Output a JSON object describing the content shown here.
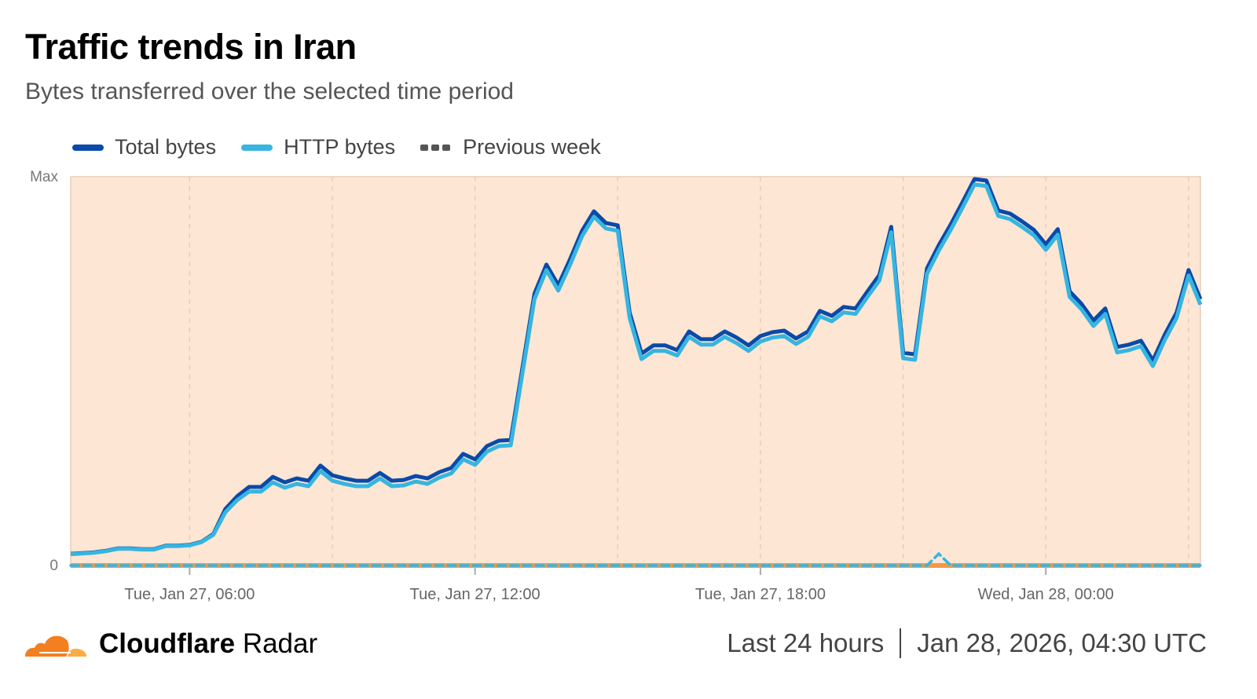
{
  "header": {
    "title": "Traffic trends in Iran",
    "subtitle": "Bytes transferred over the selected time period"
  },
  "footer": {
    "brand_bold": "Cloudflare",
    "brand_light": "Radar",
    "range": "Last 24 hours",
    "timestamp": "Jan 28, 2026, 04:30 UTC"
  },
  "chart_data": {
    "type": "line",
    "title": "Traffic trends in Iran",
    "subtitle": "Bytes transferred over the selected time period",
    "xlabel": "",
    "ylabel": "",
    "interval_minutes": 15,
    "y_tick_labels": [
      "0",
      "Max"
    ],
    "ylim": [
      0,
      1
    ],
    "x_ticks": [
      {
        "index": 10,
        "label": "Tue, Jan 27, 06:00"
      },
      {
        "index": 34,
        "label": "Tue, Jan 27, 12:00"
      },
      {
        "index": 58,
        "label": "Tue, Jan 27, 18:00"
      },
      {
        "index": 82,
        "label": "Wed, Jan 28, 00:00"
      }
    ],
    "gridline_indices": [
      10,
      22,
      34,
      46,
      58,
      70,
      82,
      94
    ],
    "legend_position": "top-left",
    "series": [
      {
        "name": "Total bytes",
        "color": "#0a4aa8",
        "style": "solid",
        "values": [
          0.03,
          0.032,
          0.034,
          0.038,
          0.044,
          0.044,
          0.042,
          0.042,
          0.051,
          0.051,
          0.053,
          0.061,
          0.081,
          0.145,
          0.178,
          0.202,
          0.202,
          0.228,
          0.214,
          0.224,
          0.218,
          0.257,
          0.232,
          0.224,
          0.218,
          0.218,
          0.238,
          0.218,
          0.22,
          0.23,
          0.224,
          0.24,
          0.251,
          0.287,
          0.273,
          0.307,
          0.321,
          0.323,
          0.511,
          0.699,
          0.774,
          0.721,
          0.788,
          0.861,
          0.911,
          0.881,
          0.875,
          0.651,
          0.545,
          0.566,
          0.566,
          0.554,
          0.602,
          0.582,
          0.582,
          0.602,
          0.586,
          0.566,
          0.59,
          0.6,
          0.604,
          0.584,
          0.602,
          0.655,
          0.642,
          0.665,
          0.661,
          0.705,
          0.747,
          0.871,
          0.547,
          0.543,
          0.764,
          0.824,
          0.877,
          0.935,
          0.994,
          0.99,
          0.913,
          0.905,
          0.885,
          0.863,
          0.826,
          0.865,
          0.705,
          0.673,
          0.63,
          0.661,
          0.562,
          0.568,
          0.578,
          0.527,
          0.594,
          0.651,
          0.76,
          0.685
        ]
      },
      {
        "name": "HTTP bytes",
        "color": "#36b5e0",
        "style": "solid",
        "values": [
          0.029,
          0.031,
          0.033,
          0.037,
          0.043,
          0.043,
          0.041,
          0.041,
          0.05,
          0.05,
          0.052,
          0.06,
          0.079,
          0.137,
          0.168,
          0.19,
          0.19,
          0.214,
          0.2,
          0.21,
          0.204,
          0.243,
          0.218,
          0.21,
          0.204,
          0.204,
          0.224,
          0.204,
          0.206,
          0.216,
          0.21,
          0.226,
          0.237,
          0.273,
          0.259,
          0.293,
          0.307,
          0.309,
          0.497,
          0.685,
          0.76,
          0.707,
          0.774,
          0.847,
          0.897,
          0.867,
          0.861,
          0.637,
          0.531,
          0.552,
          0.552,
          0.54,
          0.588,
          0.568,
          0.568,
          0.588,
          0.572,
          0.552,
          0.576,
          0.586,
          0.59,
          0.57,
          0.588,
          0.641,
          0.628,
          0.651,
          0.647,
          0.691,
          0.733,
          0.857,
          0.533,
          0.529,
          0.75,
          0.81,
          0.863,
          0.921,
          0.98,
          0.976,
          0.899,
          0.891,
          0.871,
          0.849,
          0.812,
          0.851,
          0.691,
          0.659,
          0.616,
          0.647,
          0.548,
          0.554,
          0.564,
          0.513,
          0.58,
          0.637,
          0.746,
          0.671
        ]
      },
      {
        "name": "Previous week",
        "color": "#36b5e0",
        "legend_color": "#555555",
        "style": "dashed",
        "values": [
          0,
          0,
          0,
          0,
          0,
          0,
          0,
          0,
          0,
          0,
          0,
          0,
          0,
          0,
          0,
          0,
          0,
          0,
          0,
          0,
          0,
          0,
          0,
          0,
          0,
          0,
          0,
          0,
          0,
          0,
          0,
          0,
          0,
          0,
          0,
          0,
          0,
          0,
          0,
          0,
          0,
          0,
          0,
          0,
          0,
          0,
          0,
          0,
          0,
          0,
          0,
          0,
          0,
          0,
          0,
          0,
          0,
          0,
          0,
          0,
          0,
          0,
          0,
          0,
          0,
          0,
          0,
          0,
          0,
          0,
          0,
          0,
          0,
          0.03,
          0,
          0,
          0,
          0,
          0,
          0,
          0,
          0,
          0,
          0,
          0,
          0,
          0,
          0,
          0,
          0,
          0,
          0,
          0,
          0,
          0,
          0
        ]
      }
    ],
    "background_color": "#fde6d3",
    "baseline_color": "#f2994a"
  }
}
